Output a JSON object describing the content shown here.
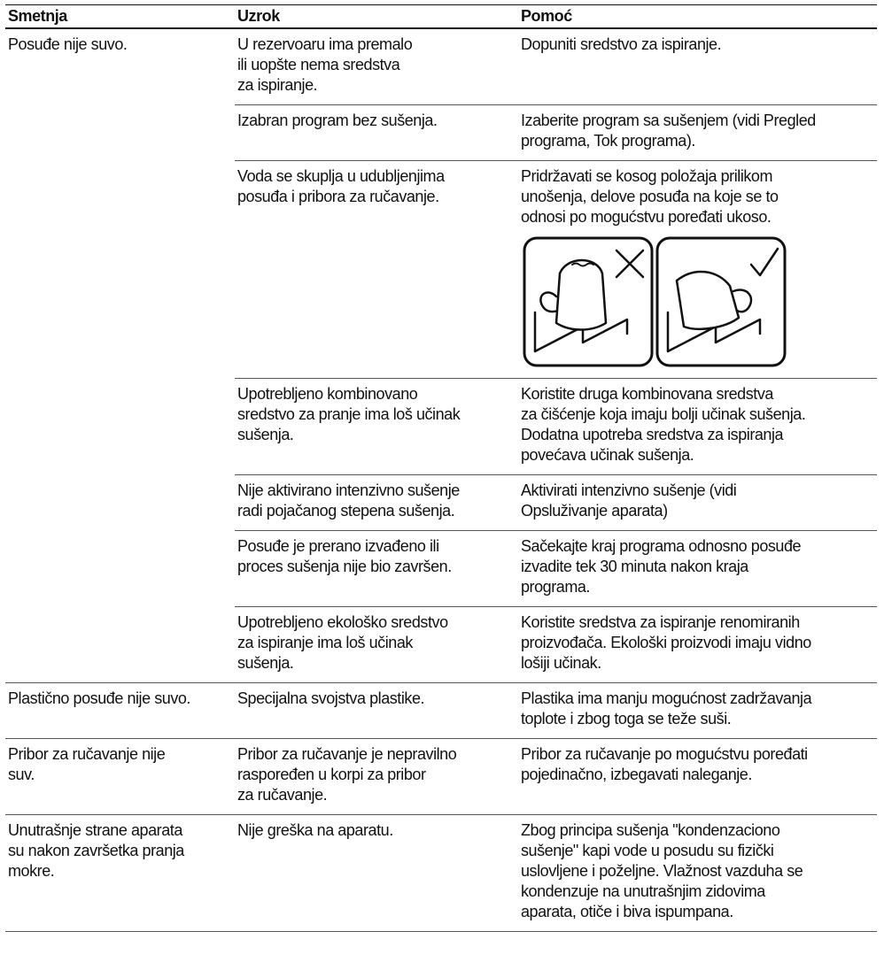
{
  "table": {
    "header": [
      "Smetnja",
      "Uzrok",
      "Pomoć"
    ],
    "rows": [
      [
        [
          "Posuđe nije suvo."
        ],
        [
          "U rezervoaru ima premalo",
          "ili uopšte nema sredstva",
          "za ispiranje."
        ],
        [
          "Dopuniti sredstvo za ispiranje."
        ]
      ],
      [
        [
          "Izabran program bez sušenja."
        ],
        [
          "Izaberite program sa sušenjem (vidi Pregled",
          "programa, Tok programa)."
        ]
      ],
      [
        [
          "Voda se skuplja u udubljenjima",
          "posuđa i pribora za ručavanje."
        ],
        [
          "Pridržavati se kosog položaja prilikom",
          "unošenja, delove posuđa na koje se to",
          "odnosi po mogućstvu poređati ukoso."
        ]
      ],
      [
        [
          "Upotrebljeno kombinovano",
          "sredstvo za pranje ima loš učinak",
          "sušenja."
        ],
        [
          "Koristite druga kombinovana sredstva",
          "za čišćenje koja imaju bolji učinak sušenja.",
          "Dodatna upotreba sredstva za ispiranja",
          "povećava učinak sušenja."
        ]
      ],
      [
        [
          "Nije aktivirano intenzivno sušenje",
          "radi pojačanog stepena sušenja."
        ],
        [
          "Aktivirati intenzivno sušenje (vidi",
          "Opsluživanje aparata)"
        ]
      ],
      [
        [
          "Posuđe je prerano izvađeno ili",
          "proces sušenja nije bio završen."
        ],
        [
          "Sačekajte kraj programa odnosno posuđe",
          "izvadite tek 30 minuta nakon kraja",
          "programa."
        ]
      ],
      [
        [
          "Upotrebljeno ekološko sredstvo",
          "za ispiranje ima loš učinak",
          "sušenja."
        ],
        [
          "Koristite sredstva za ispiranje renomiranih",
          "proizvođača. Ekološki proizvodi imaju vidno",
          "lošiji učinak."
        ]
      ],
      [
        [
          "Plastično posuđe nije suvo."
        ],
        [
          "Specijalna svojstva plastike."
        ],
        [
          "Plastika ima manju mogućnost zadržavanja",
          "toplote i zbog toga se teže suši."
        ]
      ],
      [
        [
          "Pribor za ručavanje nije",
          "suv."
        ],
        [
          "Pribor za ručavanje je nepravilno",
          "raspoređen u korpi za pribor",
          "za ručavanje."
        ],
        [
          "Pribor za ručavanje po mogućstvu poređati",
          "pojedinačno, izbegavati naleganje."
        ]
      ],
      [
        [
          "Unutrašnje strane aparata",
          "su nakon završetka pranja",
          "mokre."
        ],
        [
          "Nije greška na aparatu."
        ],
        [
          "Zbog principa sušenja \"kondenzaciono",
          "sušenje\" kapi vode u posudu su fizički",
          "uslovljene i poželjne. Vlažnost vazduha se",
          "kondenzuje na unutrašnjim zidovima",
          "aparata, otiče i biva ispumpana."
        ]
      ]
    ]
  }
}
